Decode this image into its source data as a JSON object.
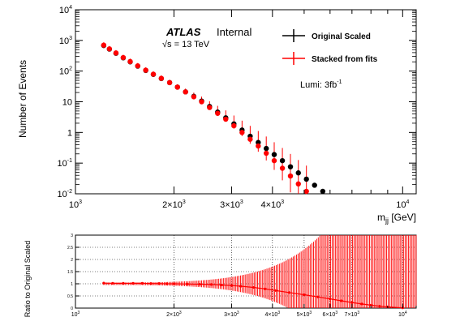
{
  "chart_data": [
    {
      "type": "scatter",
      "title": "",
      "xlabel": "m_jj [GeV]",
      "ylabel": "Number of Events",
      "x_scale": "log",
      "y_scale": "log",
      "xlim": [
        1000,
        11000
      ],
      "ylim": [
        0.01,
        10000
      ],
      "x_ticks": [
        {
          "value": 1000,
          "base": "10",
          "exp": "3"
        },
        {
          "value": 2000,
          "base": "2×10",
          "exp": "3"
        },
        {
          "value": 3000,
          "base": "3×10",
          "exp": "3"
        },
        {
          "value": 4000,
          "base": "4×10",
          "exp": "3"
        },
        {
          "value": 10000,
          "base": "10",
          "exp": "4"
        }
      ],
      "y_ticks": [
        {
          "value": 0.01,
          "base": "10",
          "exp": "-2"
        },
        {
          "value": 0.1,
          "base": "10",
          "exp": "-1"
        },
        {
          "value": 1,
          "base": "1",
          "exp": ""
        },
        {
          "value": 10,
          "base": "10",
          "exp": ""
        },
        {
          "value": 100,
          "base": "10",
          "exp": "2"
        },
        {
          "value": 1000,
          "base": "10",
          "exp": "3"
        },
        {
          "value": 10000,
          "base": "10",
          "exp": "4"
        }
      ],
      "annotations": {
        "experiment": "ATLAS",
        "status": "Internal",
        "energy_sqrt": "s",
        "energy_rest": " = 13 TeV",
        "lumi_text": "Lumi: 3fb",
        "lumi_exp": "-1"
      },
      "legend": {
        "position": "top-right",
        "entries": [
          {
            "label": "Original Scaled",
            "color": "#000000"
          },
          {
            "label": "Stacked from fits",
            "color": "#ff0000"
          }
        ]
      },
      "series": [
        {
          "name": "Original Scaled",
          "color": "#000000",
          "points": [
            [
              1220,
              680
            ],
            [
              1270,
              520
            ],
            [
              1330,
              380
            ],
            [
              1400,
              270
            ],
            [
              1470,
              200
            ],
            [
              1550,
              145
            ],
            [
              1640,
              105
            ],
            [
              1730,
              78
            ],
            [
              1830,
              57
            ],
            [
              1940,
              42
            ],
            [
              2050,
              30
            ],
            [
              2170,
              21
            ],
            [
              2300,
              15
            ],
            [
              2430,
              10.5
            ],
            [
              2570,
              7
            ],
            [
              2720,
              4.6
            ],
            [
              2880,
              3
            ],
            [
              3050,
              1.9
            ],
            [
              3230,
              1.2
            ],
            [
              3420,
              0.75
            ],
            [
              3620,
              0.47
            ],
            [
              3830,
              0.3
            ],
            [
              4050,
              0.19
            ],
            [
              4290,
              0.12
            ],
            [
              4540,
              0.076
            ],
            [
              4800,
              0.048
            ],
            [
              5080,
              0.03
            ],
            [
              5380,
              0.019
            ],
            [
              5700,
              0.012
            ]
          ]
        },
        {
          "name": "Stacked from fits",
          "color": "#ff0000",
          "points": [
            [
              1220,
              700
            ],
            [
              1270,
              530
            ],
            [
              1330,
              390
            ],
            [
              1400,
              275
            ],
            [
              1470,
              205
            ],
            [
              1550,
              148
            ],
            [
              1640,
              107
            ],
            [
              1730,
              79
            ],
            [
              1830,
              58
            ],
            [
              1940,
              42
            ],
            [
              2050,
              30
            ],
            [
              2170,
              21
            ],
            [
              2300,
              14.5
            ],
            [
              2430,
              10
            ],
            [
              2570,
              6.5
            ],
            [
              2720,
              4.2
            ],
            [
              2880,
              2.7
            ],
            [
              3050,
              1.65
            ],
            [
              3230,
              1.0
            ],
            [
              3420,
              0.6
            ],
            [
              3620,
              0.36
            ],
            [
              3830,
              0.21
            ],
            [
              4050,
              0.12
            ],
            [
              4290,
              0.068
            ],
            [
              4540,
              0.038
            ],
            [
              4800,
              0.021
            ],
            [
              5080,
              0.012
            ]
          ]
        }
      ]
    },
    {
      "type": "scatter",
      "title": "",
      "xlabel": "",
      "ylabel": "Ratio to Original Scaled",
      "x_scale": "log",
      "xlim": [
        1000,
        11000
      ],
      "ylim": [
        0,
        3
      ],
      "x_ticks": [
        {
          "value": 1000,
          "base": "10",
          "exp": "3"
        },
        {
          "value": 2000,
          "base": "2×10",
          "exp": "3"
        },
        {
          "value": 3000,
          "base": "3×10",
          "exp": "3"
        },
        {
          "value": 4000,
          "base": "4×10",
          "exp": "3"
        },
        {
          "value": 5000,
          "base": "5×10",
          "exp": "3"
        },
        {
          "value": 6000,
          "base": "6×10",
          "exp": "3"
        },
        {
          "value": 7000,
          "base": "7×10",
          "exp": "3"
        },
        {
          "value": 10000,
          "base": "10",
          "exp": "4"
        }
      ],
      "y_ticks": [
        {
          "value": 0,
          "label": "0"
        },
        {
          "value": 0.5,
          "label": "0.5"
        },
        {
          "value": 1,
          "label": "1"
        },
        {
          "value": 1.5,
          "label": "1.5"
        },
        {
          "value": 2,
          "label": "2"
        },
        {
          "value": 2.5,
          "label": "2.5"
        },
        {
          "value": 3,
          "label": "3"
        }
      ],
      "grid": true,
      "series": [
        {
          "name": "Stacked from fits",
          "color": "#ff0000",
          "points": [
            [
              1220,
              1.03
            ],
            [
              1300,
              1.02
            ],
            [
              1400,
              1.02
            ],
            [
              1500,
              1.02
            ],
            [
              1600,
              1.02
            ],
            [
              1700,
              1.01
            ],
            [
              1800,
              1.01
            ],
            [
              1900,
              1.0
            ],
            [
              2000,
              1.0
            ],
            [
              2200,
              0.99
            ],
            [
              2400,
              0.98
            ],
            [
              2600,
              0.97
            ],
            [
              2800,
              0.95
            ],
            [
              3000,
              0.93
            ],
            [
              3200,
              0.9
            ],
            [
              3500,
              0.85
            ],
            [
              3800,
              0.79
            ],
            [
              4100,
              0.72
            ],
            [
              4500,
              0.64
            ],
            [
              5000,
              0.55
            ],
            [
              5500,
              0.46
            ],
            [
              6000,
              0.38
            ],
            [
              6500,
              0.3
            ],
            [
              7000,
              0.23
            ],
            [
              7500,
              0.17
            ],
            [
              8000,
              0.12
            ],
            [
              8500,
              0.08
            ],
            [
              9000,
              0.05
            ],
            [
              10000,
              0.01
            ]
          ]
        }
      ]
    }
  ]
}
